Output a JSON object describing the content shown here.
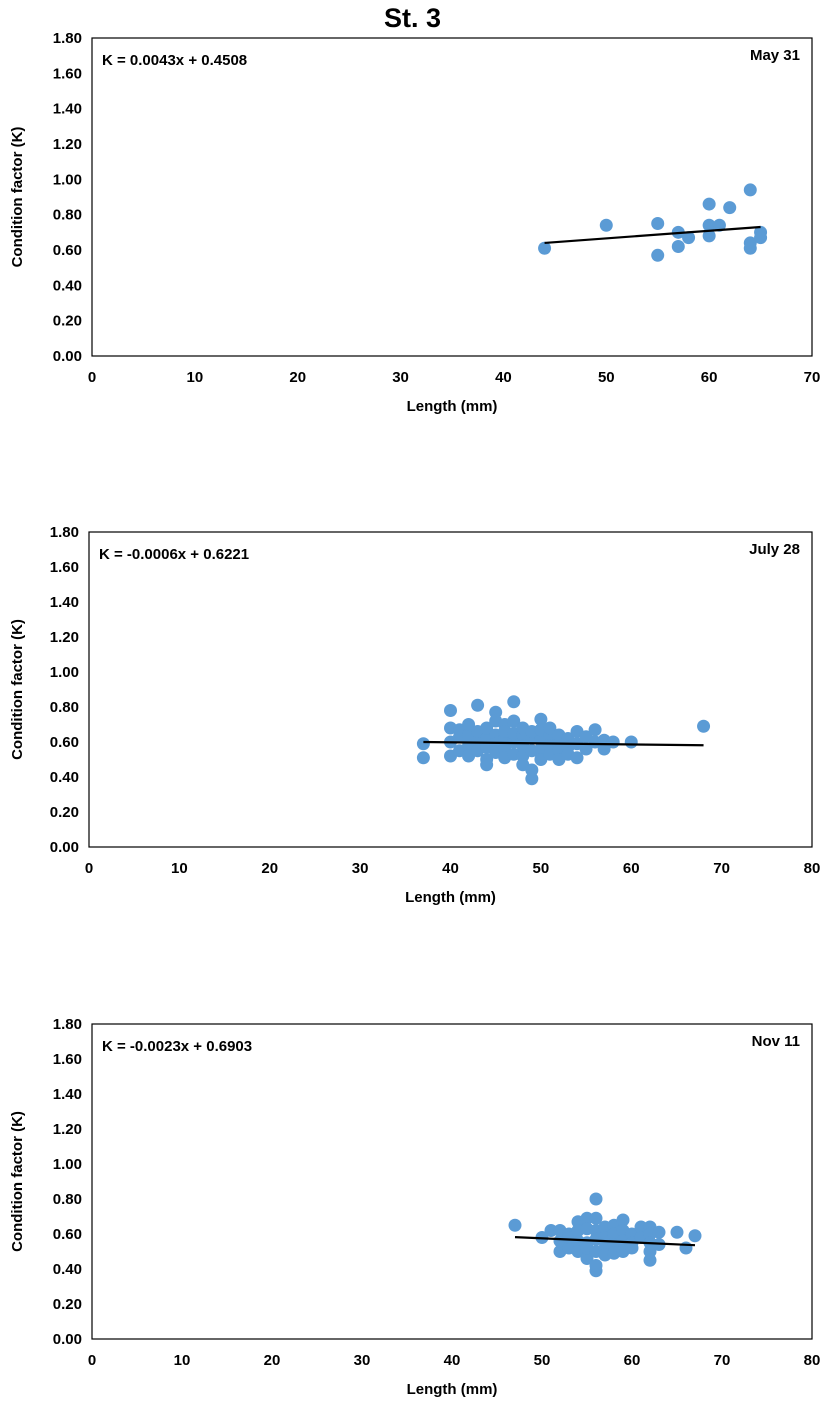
{
  "figure": {
    "title": "St. 3"
  },
  "chart_data": [
    {
      "type": "scatter",
      "panel": "May 31",
      "date_label": "May 31",
      "equation": "K = 0.0043x + 0.4508",
      "xlabel": "Length (mm)",
      "ylabel": "Condition factor (K)",
      "xlim": [
        0,
        70
      ],
      "ylim": [
        0,
        1.8
      ],
      "xticks": [
        0,
        10,
        20,
        30,
        40,
        50,
        60,
        70
      ],
      "yticks": [
        "0.00",
        "0.20",
        "0.40",
        "0.60",
        "0.80",
        "1.00",
        "1.20",
        "1.40",
        "1.60",
        "1.80"
      ],
      "trendline": {
        "slope": 0.0043,
        "intercept": 0.4508,
        "x_range": [
          44,
          65
        ]
      },
      "marker_color": "#5B9BD5",
      "line_color": "#000000",
      "points": [
        [
          44,
          0.61
        ],
        [
          50,
          0.74
        ],
        [
          55,
          0.57
        ],
        [
          55,
          0.75
        ],
        [
          57,
          0.62
        ],
        [
          57,
          0.7
        ],
        [
          58,
          0.67
        ],
        [
          60,
          0.68
        ],
        [
          60,
          0.74
        ],
        [
          60,
          0.86
        ],
        [
          61,
          0.74
        ],
        [
          62,
          0.84
        ],
        [
          64,
          0.94
        ],
        [
          64,
          0.64
        ],
        [
          64,
          0.61
        ],
        [
          65,
          0.7
        ],
        [
          65,
          0.67
        ]
      ]
    },
    {
      "type": "scatter",
      "panel": "July 28",
      "date_label": "July 28",
      "equation": "K = -0.0006x + 0.6221",
      "xlabel": "Length (mm)",
      "ylabel": "Condition factor (K)",
      "xlim": [
        0,
        80
      ],
      "ylim": [
        0,
        1.8
      ],
      "xticks": [
        0,
        10,
        20,
        30,
        40,
        50,
        60,
        70,
        80
      ],
      "yticks": [
        "0.00",
        "0.20",
        "0.40",
        "0.60",
        "0.80",
        "1.00",
        "1.20",
        "1.40",
        "1.60",
        "1.80"
      ],
      "trendline": {
        "slope": -0.0006,
        "intercept": 0.6221,
        "x_range": [
          37,
          68
        ]
      },
      "marker_color": "#5B9BD5",
      "line_color": "#000000",
      "points": [
        [
          37,
          0.51
        ],
        [
          37,
          0.59
        ],
        [
          40,
          0.78
        ],
        [
          40,
          0.68
        ],
        [
          40,
          0.6
        ],
        [
          40,
          0.52
        ],
        [
          41,
          0.63
        ],
        [
          41,
          0.55
        ],
        [
          41,
          0.67
        ],
        [
          42,
          0.58
        ],
        [
          42,
          0.64
        ],
        [
          42,
          0.52
        ],
        [
          42,
          0.7
        ],
        [
          43,
          0.81
        ],
        [
          43,
          0.6
        ],
        [
          43,
          0.55
        ],
        [
          43,
          0.66
        ],
        [
          44,
          0.5
        ],
        [
          44,
          0.62
        ],
        [
          44,
          0.57
        ],
        [
          44,
          0.68
        ],
        [
          44,
          0.47
        ],
        [
          45,
          0.77
        ],
        [
          45,
          0.72
        ],
        [
          45,
          0.64
        ],
        [
          45,
          0.59
        ],
        [
          45,
          0.54
        ],
        [
          46,
          0.7
        ],
        [
          46,
          0.62
        ],
        [
          46,
          0.56
        ],
        [
          46,
          0.51
        ],
        [
          46,
          0.66
        ],
        [
          47,
          0.83
        ],
        [
          47,
          0.72
        ],
        [
          47,
          0.6
        ],
        [
          47,
          0.53
        ],
        [
          47,
          0.65
        ],
        [
          48,
          0.64
        ],
        [
          48,
          0.58
        ],
        [
          48,
          0.52
        ],
        [
          48,
          0.68
        ],
        [
          48,
          0.47
        ],
        [
          49,
          0.39
        ],
        [
          49,
          0.62
        ],
        [
          49,
          0.55
        ],
        [
          49,
          0.44
        ],
        [
          49,
          0.66
        ],
        [
          50,
          0.73
        ],
        [
          50,
          0.61
        ],
        [
          50,
          0.56
        ],
        [
          50,
          0.5
        ],
        [
          50,
          0.67
        ],
        [
          51,
          0.64
        ],
        [
          51,
          0.58
        ],
        [
          51,
          0.53
        ],
        [
          51,
          0.68
        ],
        [
          52,
          0.6
        ],
        [
          52,
          0.55
        ],
        [
          52,
          0.5
        ],
        [
          52,
          0.64
        ],
        [
          53,
          0.62
        ],
        [
          53,
          0.57
        ],
        [
          53,
          0.53
        ],
        [
          54,
          0.66
        ],
        [
          54,
          0.59
        ],
        [
          54,
          0.51
        ],
        [
          55,
          0.63
        ],
        [
          55,
          0.56
        ],
        [
          56,
          0.67
        ],
        [
          56,
          0.6
        ],
        [
          57,
          0.61
        ],
        [
          57,
          0.56
        ],
        [
          58,
          0.6
        ],
        [
          60,
          0.6
        ],
        [
          68,
          0.69
        ]
      ]
    },
    {
      "type": "scatter",
      "panel": "Nov 11",
      "date_label": "Nov 11",
      "equation": "K = -0.0023x + 0.6903",
      "xlabel": "Length (mm)",
      "ylabel": "Condition factor (K)",
      "xlim": [
        0,
        80
      ],
      "ylim": [
        0,
        1.8
      ],
      "xticks": [
        0,
        10,
        20,
        30,
        40,
        50,
        60,
        70,
        80
      ],
      "yticks": [
        "0.00",
        "0.20",
        "0.40",
        "0.60",
        "0.80",
        "1.00",
        "1.20",
        "1.40",
        "1.60",
        "1.80"
      ],
      "trendline": {
        "slope": -0.0023,
        "intercept": 0.6903,
        "x_range": [
          47,
          67
        ]
      },
      "marker_color": "#5B9BD5",
      "line_color": "#000000",
      "points": [
        [
          47,
          0.65
        ],
        [
          50,
          0.58
        ],
        [
          51,
          0.62
        ],
        [
          52,
          0.5
        ],
        [
          52,
          0.56
        ],
        [
          52,
          0.62
        ],
        [
          53,
          0.52
        ],
        [
          53,
          0.6
        ],
        [
          53,
          0.58
        ],
        [
          54,
          0.67
        ],
        [
          54,
          0.56
        ],
        [
          54,
          0.5
        ],
        [
          54,
          0.62
        ],
        [
          55,
          0.69
        ],
        [
          55,
          0.63
        ],
        [
          55,
          0.55
        ],
        [
          55,
          0.46
        ],
        [
          55,
          0.52
        ],
        [
          56,
          0.39
        ],
        [
          56,
          0.8
        ],
        [
          56,
          0.69
        ],
        [
          56,
          0.62
        ],
        [
          56,
          0.57
        ],
        [
          56,
          0.5
        ],
        [
          56,
          0.42
        ],
        [
          57,
          0.64
        ],
        [
          57,
          0.58
        ],
        [
          57,
          0.52
        ],
        [
          57,
          0.48
        ],
        [
          58,
          0.65
        ],
        [
          58,
          0.6
        ],
        [
          58,
          0.54
        ],
        [
          58,
          0.49
        ],
        [
          59,
          0.68
        ],
        [
          59,
          0.62
        ],
        [
          59,
          0.56
        ],
        [
          59,
          0.5
        ],
        [
          60,
          0.6
        ],
        [
          60,
          0.55
        ],
        [
          60,
          0.52
        ],
        [
          61,
          0.64
        ],
        [
          61,
          0.58
        ],
        [
          62,
          0.64
        ],
        [
          62,
          0.6
        ],
        [
          62,
          0.55
        ],
        [
          62,
          0.5
        ],
        [
          62,
          0.45
        ],
        [
          63,
          0.61
        ],
        [
          63,
          0.54
        ],
        [
          65,
          0.61
        ],
        [
          66,
          0.52
        ],
        [
          67,
          0.59
        ]
      ]
    }
  ]
}
